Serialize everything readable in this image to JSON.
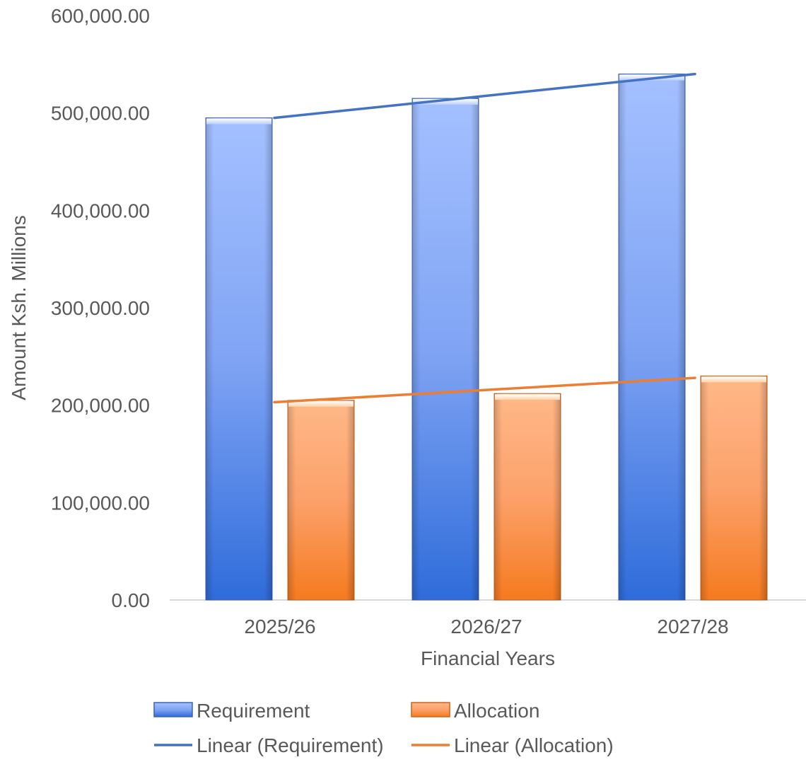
{
  "chart_data": {
    "type": "bar",
    "title": "",
    "xlabel": "Financial Years",
    "ylabel": "Amount Ksh. Millions",
    "categories": [
      "2025/26",
      "2026/27",
      "2027/28"
    ],
    "series": [
      {
        "name": "Requirement",
        "values": [
          495000,
          515000,
          540000
        ],
        "color": "#4472C4"
      },
      {
        "name": "Allocation",
        "values": [
          205000,
          212000,
          230000
        ],
        "color": "#ED7D31"
      }
    ],
    "trendlines": [
      {
        "name": "Linear (Requirement)",
        "values": [
          495000,
          517500,
          540000
        ],
        "color": "#4472C4"
      },
      {
        "name": "Linear (Allocation)",
        "values": [
          203000,
          215500,
          228000
        ],
        "color": "#ED7D31"
      }
    ],
    "ylim": [
      0,
      600000
    ],
    "yticks": [
      "0.00",
      "100,000.00",
      "200,000.00",
      "300,000.00",
      "400,000.00",
      "500,000.00",
      "600,000.00"
    ],
    "grid": false,
    "legend_position": "bottom",
    "legend": [
      "Requirement",
      "Allocation",
      "Linear (Requirement)",
      "Linear (Allocation)"
    ]
  }
}
